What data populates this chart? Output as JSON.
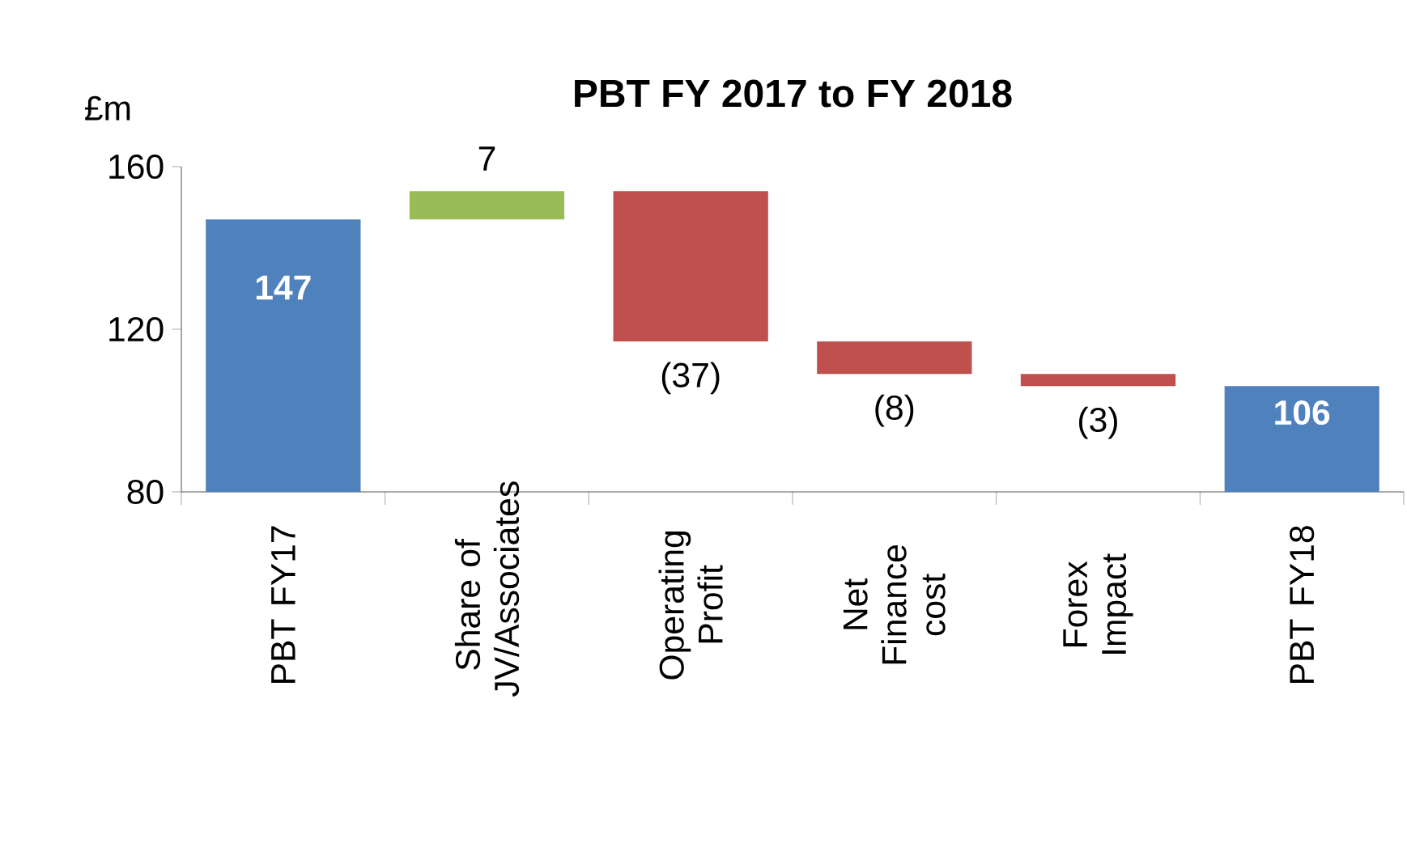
{
  "chart_data": {
    "type": "bar",
    "title": "PBT FY 2017 to FY 2018",
    "ylabel": "£m",
    "categories": [
      "PBT FY17",
      "Share of JV/Associates",
      "Operating Profit",
      "Net Finance cost",
      "Forex Impact",
      "PBT FY18"
    ],
    "values": [
      147,
      7,
      -37,
      -8,
      -3,
      106
    ],
    "base": [
      null,
      147,
      154,
      117,
      109,
      null
    ],
    "colors": [
      "#4f81bd",
      "#9bbb59",
      "#c0504d",
      "#c0504d",
      "#c0504d",
      "#4f81bd"
    ],
    "value_labels": [
      "147",
      "7",
      "(37)",
      "(8)",
      "(3)",
      "106"
    ],
    "ylim": [
      80,
      160
    ],
    "yticks": [
      80,
      120,
      160
    ]
  }
}
